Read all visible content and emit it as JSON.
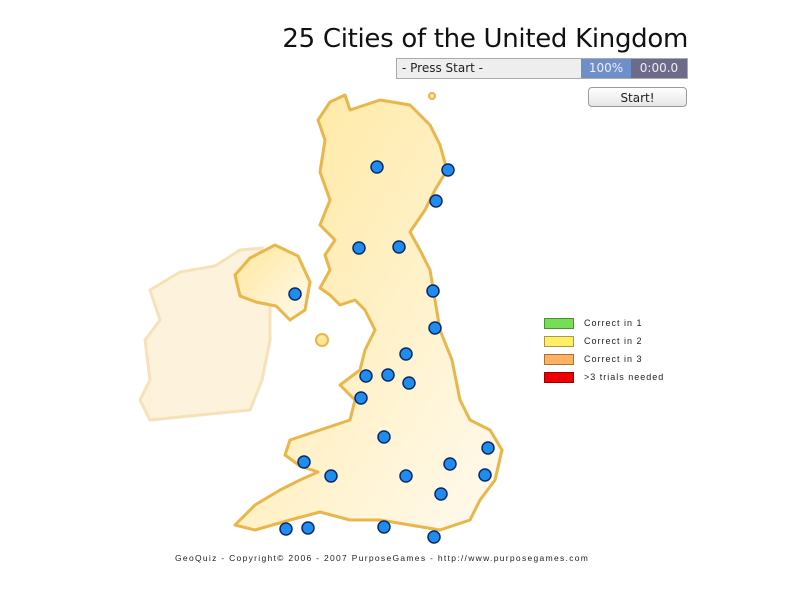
{
  "title": "25 Cities of the United Kingdom",
  "status": {
    "message": "- Press Start -",
    "percent": "100%",
    "timer": "0:00.0"
  },
  "start_button": "Start!",
  "map": {
    "land_color": "#fff0b8",
    "coast_color": "#e8b64a",
    "ireland_color": "#fdf3dc",
    "city_marker_color": "#1f8cf0",
    "city_count": 25
  },
  "legend": [
    {
      "label": "Correct in 1",
      "color": "#77dd55"
    },
    {
      "label": "Correct in 2",
      "color": "#ffee66"
    },
    {
      "label": "Correct in 3",
      "color": "#ffb060"
    },
    {
      "label": ">3 trials needed",
      "color": "#ee0000"
    }
  ],
  "footer": "GeoQuiz - Copyright© 2006 - 2007 PurposeGames - http://www.purposegames.com"
}
